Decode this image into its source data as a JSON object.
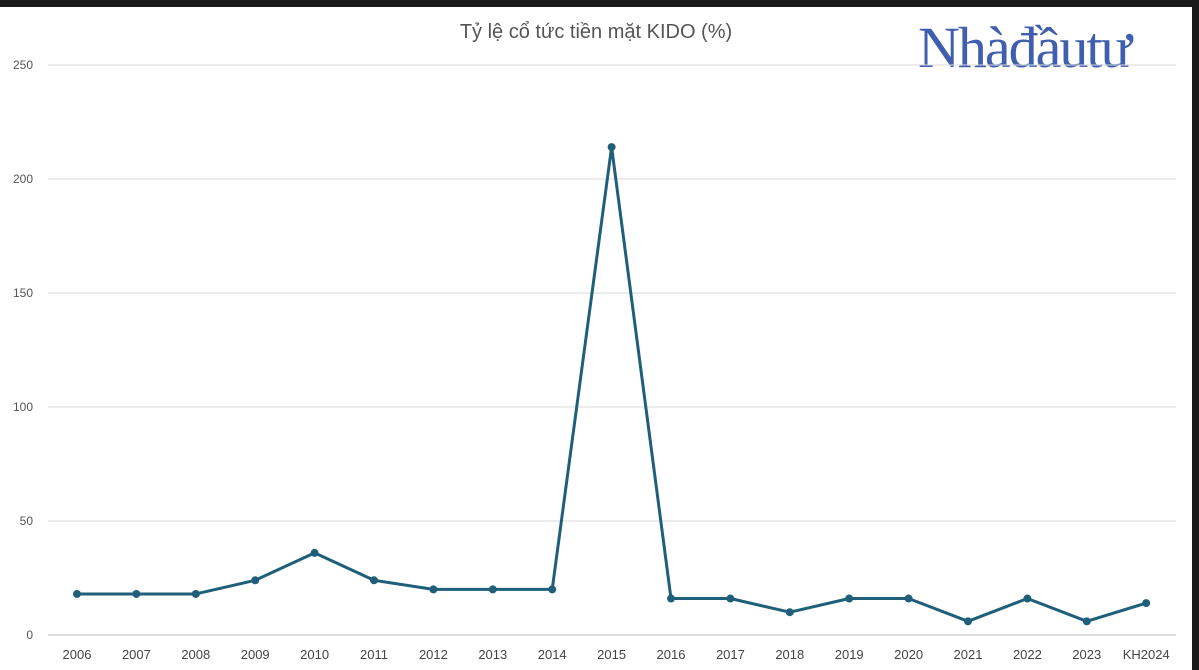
{
  "brand": {
    "logo_text": "Nhàđầutư",
    "logo_color": "#3f5fae"
  },
  "chart_data": {
    "type": "line",
    "title": "Tỷ lệ cổ tức tiền mặt KIDO (%)",
    "xlabel": "",
    "ylabel": "",
    "ylim": [
      0,
      250
    ],
    "yticks": [
      0,
      50,
      100,
      150,
      200,
      250
    ],
    "grid": true,
    "legend": "none",
    "categories": [
      "2006",
      "2007",
      "2008",
      "2009",
      "2010",
      "2011",
      "2012",
      "2013",
      "2014",
      "2015",
      "2016",
      "2017",
      "2018",
      "2019",
      "2020",
      "2021",
      "2022",
      "2023",
      "KH2024"
    ],
    "series": [
      {
        "color": "#1f5f7a",
        "values": [
          18,
          18,
          18,
          24,
          36,
          24,
          20,
          20,
          20,
          214,
          16,
          16,
          10,
          16,
          16,
          6,
          16,
          6,
          14
        ]
      }
    ]
  }
}
